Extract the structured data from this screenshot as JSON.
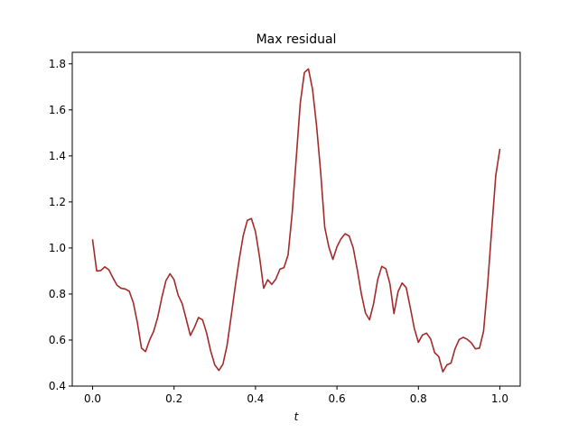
{
  "chart_data": {
    "type": "line",
    "title": "Max residual",
    "xlabel": "t",
    "ylabel": "",
    "xlim": [
      -0.05,
      1.05
    ],
    "ylim": [
      0.4,
      1.85
    ],
    "xticks": [
      0.0,
      0.2,
      0.4,
      0.6,
      0.8,
      1.0
    ],
    "xtick_labels": [
      "0.0",
      "0.2",
      "0.4",
      "0.6",
      "0.8",
      "1.0"
    ],
    "yticks": [
      0.4,
      0.6,
      0.8,
      1.0,
      1.2,
      1.4,
      1.6,
      1.8
    ],
    "ytick_labels": [
      "0.4",
      "0.6",
      "0.8",
      "1.0",
      "1.2",
      "1.4",
      "1.6",
      "1.8"
    ],
    "grid": false,
    "series": [
      {
        "color": "#a52a2a",
        "points": [
          [
            0.0,
            1.035
          ],
          [
            0.01,
            0.9
          ],
          [
            0.02,
            0.902
          ],
          [
            0.03,
            0.918
          ],
          [
            0.04,
            0.905
          ],
          [
            0.05,
            0.87
          ],
          [
            0.06,
            0.838
          ],
          [
            0.07,
            0.825
          ],
          [
            0.08,
            0.822
          ],
          [
            0.09,
            0.812
          ],
          [
            0.1,
            0.762
          ],
          [
            0.11,
            0.675
          ],
          [
            0.12,
            0.565
          ],
          [
            0.13,
            0.55
          ],
          [
            0.14,
            0.6
          ],
          [
            0.15,
            0.638
          ],
          [
            0.16,
            0.7
          ],
          [
            0.17,
            0.785
          ],
          [
            0.18,
            0.858
          ],
          [
            0.19,
            0.888
          ],
          [
            0.2,
            0.862
          ],
          [
            0.21,
            0.795
          ],
          [
            0.22,
            0.758
          ],
          [
            0.23,
            0.69
          ],
          [
            0.24,
            0.62
          ],
          [
            0.25,
            0.655
          ],
          [
            0.26,
            0.698
          ],
          [
            0.27,
            0.688
          ],
          [
            0.28,
            0.63
          ],
          [
            0.29,
            0.552
          ],
          [
            0.3,
            0.492
          ],
          [
            0.31,
            0.468
          ],
          [
            0.32,
            0.495
          ],
          [
            0.33,
            0.575
          ],
          [
            0.34,
            0.7
          ],
          [
            0.35,
            0.83
          ],
          [
            0.36,
            0.95
          ],
          [
            0.37,
            1.055
          ],
          [
            0.38,
            1.12
          ],
          [
            0.39,
            1.128
          ],
          [
            0.4,
            1.07
          ],
          [
            0.41,
            0.96
          ],
          [
            0.42,
            0.825
          ],
          [
            0.43,
            0.862
          ],
          [
            0.44,
            0.842
          ],
          [
            0.45,
            0.865
          ],
          [
            0.46,
            0.908
          ],
          [
            0.47,
            0.915
          ],
          [
            0.48,
            0.97
          ],
          [
            0.49,
            1.15
          ],
          [
            0.5,
            1.39
          ],
          [
            0.51,
            1.63
          ],
          [
            0.52,
            1.762
          ],
          [
            0.53,
            1.778
          ],
          [
            0.54,
            1.69
          ],
          [
            0.55,
            1.53
          ],
          [
            0.56,
            1.33
          ],
          [
            0.57,
            1.09
          ],
          [
            0.58,
            1.005
          ],
          [
            0.59,
            0.95
          ],
          [
            0.6,
            1.005
          ],
          [
            0.61,
            1.04
          ],
          [
            0.62,
            1.062
          ],
          [
            0.63,
            1.052
          ],
          [
            0.64,
            1.0
          ],
          [
            0.65,
            0.905
          ],
          [
            0.66,
            0.8
          ],
          [
            0.67,
            0.718
          ],
          [
            0.68,
            0.688
          ],
          [
            0.69,
            0.758
          ],
          [
            0.7,
            0.862
          ],
          [
            0.71,
            0.92
          ],
          [
            0.72,
            0.91
          ],
          [
            0.73,
            0.845
          ],
          [
            0.74,
            0.715
          ],
          [
            0.75,
            0.81
          ],
          [
            0.76,
            0.848
          ],
          [
            0.77,
            0.828
          ],
          [
            0.78,
            0.742
          ],
          [
            0.79,
            0.65
          ],
          [
            0.8,
            0.59
          ],
          [
            0.81,
            0.622
          ],
          [
            0.82,
            0.63
          ],
          [
            0.83,
            0.605
          ],
          [
            0.84,
            0.545
          ],
          [
            0.85,
            0.528
          ],
          [
            0.86,
            0.462
          ],
          [
            0.87,
            0.492
          ],
          [
            0.88,
            0.5
          ],
          [
            0.89,
            0.562
          ],
          [
            0.9,
            0.602
          ],
          [
            0.91,
            0.612
          ],
          [
            0.92,
            0.603
          ],
          [
            0.93,
            0.588
          ],
          [
            0.94,
            0.562
          ],
          [
            0.95,
            0.565
          ],
          [
            0.96,
            0.638
          ],
          [
            0.97,
            0.84
          ],
          [
            0.98,
            1.08
          ],
          [
            0.99,
            1.315
          ],
          [
            1.0,
            1.428
          ]
        ]
      }
    ]
  }
}
